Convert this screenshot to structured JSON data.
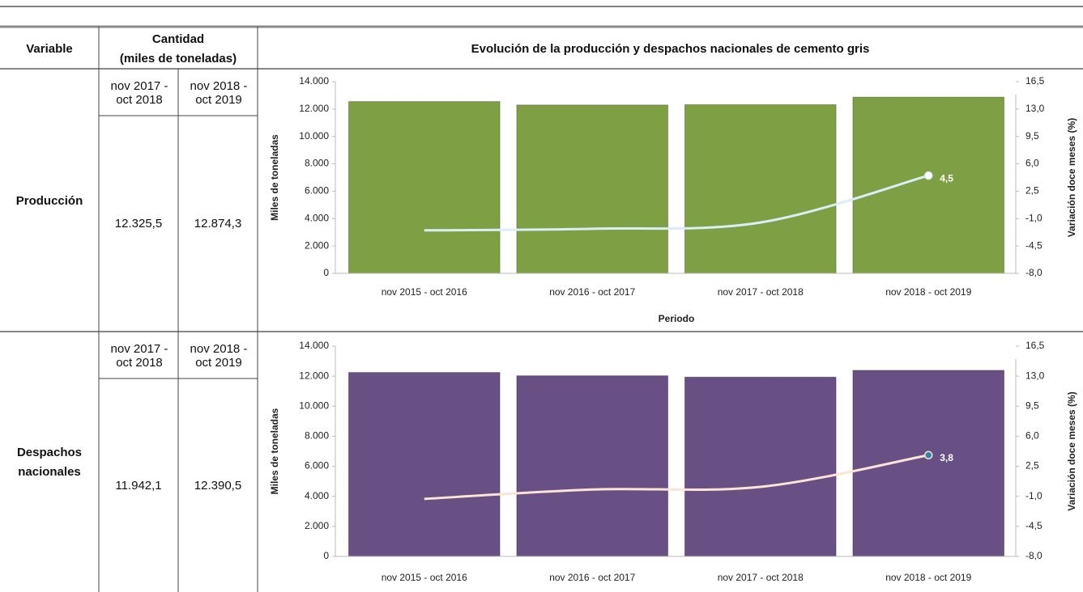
{
  "table": {
    "header": {
      "variable": "Variable",
      "quantity_title": "Cantidad",
      "quantity_unit": "(miles de toneladas)",
      "chart_title": "Evolución de la producción y despachos nacionales de cemento gris"
    },
    "rows": [
      {
        "variable": "Producción",
        "periods": [
          "nov 2017 - oct 2018",
          "nov 2018 - oct 2019"
        ],
        "quantities": [
          "12.325,5",
          "12.874,3"
        ]
      },
      {
        "variable": "Despachos nacionales",
        "periods": [
          "nov 2017 - oct 2018",
          "nov 2018 - oct 2019"
        ],
        "quantities": [
          "11.942,1",
          "12.390,5"
        ]
      }
    ]
  },
  "chart_data": [
    {
      "type": "bar",
      "xlabel": "Periodo",
      "ylabel": "Miles de toneladas",
      "y2label": "Variación doce meses (%)",
      "categories": [
        "nov 2015 - oct 2016",
        "nov 2016 - oct 2017",
        "nov 2017 - oct 2018",
        "nov 2018 - oct 2019"
      ],
      "series": [
        {
          "color": "#7f9f45",
          "values": [
            12550,
            12300,
            12325.5,
            12874.3
          ]
        },
        {
          "type": "line",
          "axis": "y2",
          "color": "#dbeef5",
          "marker_color": "#ffffff",
          "values": [
            -2.5,
            -2.3,
            -1.5,
            4.5
          ],
          "value_labels": [
            null,
            null,
            null,
            "4,5"
          ]
        }
      ],
      "ylim": [
        0,
        14000
      ],
      "yticks": [
        0,
        {
          "value": 2000,
          "label": "2.000"
        },
        {
          "value": 4000,
          "label": "4.000"
        },
        {
          "value": 6000,
          "label": "6.000"
        },
        {
          "value": 8000,
          "label": "8.000"
        },
        {
          "value": 10000,
          "label": "10.000"
        },
        {
          "value": 12000,
          "label": "12.000"
        },
        {
          "value": 14000,
          "label": "14.000"
        }
      ],
      "y2lim": [
        -8,
        16.5
      ],
      "y2ticks": [
        {
          "value": -8,
          "label": "-8,0"
        },
        {
          "value": -4.5,
          "label": "-4,5"
        },
        {
          "value": -1,
          "label": "-1,0"
        },
        {
          "value": 2.5,
          "label": "2,5"
        },
        {
          "value": 6,
          "label": "6,0"
        },
        {
          "value": 9.5,
          "label": "9,5"
        },
        {
          "value": 13,
          "label": "13,0"
        },
        {
          "value": 16.5,
          "label": "16,5"
        }
      ]
    },
    {
      "type": "bar",
      "xlabel": "Periodo",
      "ylabel": "Miles de toneladas",
      "y2label": "Variación doce meses (%)",
      "categories": [
        "nov 2015 - oct 2016",
        "nov 2016 - oct 2017",
        "nov 2017 - oct 2018",
        "nov 2018 - oct 2019"
      ],
      "series": [
        {
          "color": "#684f84",
          "values": [
            12250,
            12030,
            11942.1,
            12390.5
          ]
        },
        {
          "type": "line",
          "axis": "y2",
          "color": "#fce4d6",
          "marker_color": "#31859c",
          "values": [
            -1.3,
            -0.2,
            0.1,
            3.8
          ],
          "value_labels": [
            null,
            null,
            null,
            "3,8"
          ]
        }
      ],
      "ylim": [
        0,
        14000
      ],
      "yticks": [
        0,
        {
          "value": 2000,
          "label": "2.000"
        },
        {
          "value": 4000,
          "label": "4.000"
        },
        {
          "value": 6000,
          "label": "6.000"
        },
        {
          "value": 8000,
          "label": "8.000"
        },
        {
          "value": 10000,
          "label": "10.000"
        },
        {
          "value": 12000,
          "label": "12.000"
        },
        {
          "value": 14000,
          "label": "14.000"
        }
      ],
      "y2lim": [
        -8,
        16.5
      ],
      "y2ticks": [
        {
          "value": -8,
          "label": "-8,0"
        },
        {
          "value": -4.5,
          "label": "-4,5"
        },
        {
          "value": -1,
          "label": "-1,0"
        },
        {
          "value": 2.5,
          "label": "2,5"
        },
        {
          "value": 6,
          "label": "6,0"
        },
        {
          "value": 9.5,
          "label": "9,5"
        },
        {
          "value": 13,
          "label": "13,0"
        },
        {
          "value": 16.5,
          "label": "16,5"
        }
      ]
    }
  ]
}
